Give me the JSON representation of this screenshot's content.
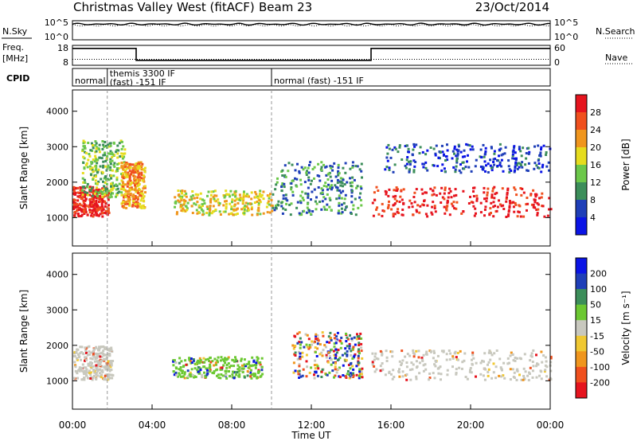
{
  "header": {
    "station": "Christmas Valley West (fitACF)",
    "beam": "Beam 23",
    "date": "23/Oct/2014"
  },
  "colors": {
    "power_scale": [
      "#0a14e6",
      "#1f3fb8",
      "#3c8e5a",
      "#6cc84a",
      "#e6dc1e",
      "#f0961e",
      "#f0501e",
      "#e6141e"
    ],
    "velocity_scale": [
      "#e6141e",
      "#f0501e",
      "#f0961e",
      "#f0c832",
      "#c8c8be",
      "#6cc832",
      "#3c8e5a",
      "#1f3fb8",
      "#0a14e6"
    ],
    "ground_scatter": "#c8c8be"
  },
  "chart_data": [
    {
      "type": "line",
      "name": "nsky-nsearch-panel",
      "left_label": "N.Sky",
      "right_label": "N.Search",
      "y_ticks_left": [
        "10^5",
        "10^0"
      ],
      "y_ticks_right": [
        "10^5",
        "10^0"
      ],
      "series": [
        {
          "name": "N.Sky",
          "style": "solid",
          "level": 0.82
        },
        {
          "name": "N.Search",
          "style": "dotted",
          "level": 0.76
        }
      ]
    },
    {
      "type": "line",
      "name": "freq-nave-panel",
      "left_label": "Freq.",
      "left_unit": "[MHz]",
      "right_label": "Nave",
      "y_ticks_left": [
        "18",
        "8"
      ],
      "y_ticks_right": [
        "60",
        "0"
      ],
      "freq_steps": [
        {
          "from": 0,
          "to": 3.2,
          "mhz": 16.5
        },
        {
          "from": 3.2,
          "to": 15.0,
          "mhz": 10.5
        },
        {
          "from": 15.0,
          "to": 24,
          "mhz": 16.5
        }
      ],
      "nave_level_frac": 0.3
    },
    {
      "type": "table",
      "name": "cpid-panel",
      "label": "CPID",
      "segments": [
        {
          "start": 0,
          "end": 1.75,
          "text": "normal"
        },
        {
          "start": 1.75,
          "end": 10.0,
          "text": "themis 3300 IF",
          "text2": "(fast) -151 IF"
        },
        {
          "start": 10.0,
          "end": 24,
          "text": "normal (fast) -151 IF"
        }
      ]
    },
    {
      "type": "heatmap",
      "name": "power-panel",
      "ylabel": "Slant Range [km]",
      "y_ticks": [
        "4000",
        "3000",
        "2000",
        "1000"
      ],
      "y_tick_values": [
        4000,
        3000,
        2000,
        1000
      ],
      "ylim": [
        200,
        4600
      ],
      "colorbar_label": "Power [dB]",
      "colorbar_ticks": [
        "28",
        "24",
        "20",
        "16",
        "12",
        "8",
        "4"
      ],
      "region_intensity": [
        {
          "t0": 0.0,
          "t1": 1.8,
          "r0": 1050,
          "r1": 1900,
          "level": 7
        },
        {
          "t0": 0.4,
          "t1": 2.6,
          "r0": 1600,
          "r1": 3200,
          "level": 3
        },
        {
          "t0": 2.4,
          "t1": 3.6,
          "r0": 1300,
          "r1": 2600,
          "level": 5
        },
        {
          "t0": 5.0,
          "t1": 10.0,
          "r0": 1100,
          "r1": 1800,
          "level": 4
        },
        {
          "t0": 10.0,
          "t1": 14.5,
          "r0": 1100,
          "r1": 2600,
          "level": 2
        },
        {
          "t0": 15.0,
          "t1": 24.0,
          "r0": 1050,
          "r1": 1900,
          "level": 7
        },
        {
          "t0": 15.5,
          "t1": 24.0,
          "r0": 2300,
          "r1": 3100,
          "level": 1
        }
      ]
    },
    {
      "type": "heatmap",
      "name": "velocity-panel",
      "ylabel": "Slant Range [km]",
      "y_ticks": [
        "4000",
        "3000",
        "2000",
        "1000"
      ],
      "y_tick_values": [
        4000,
        3000,
        2000,
        1000
      ],
      "ylim": [
        200,
        4600
      ],
      "colorbar_label": "Velocity [m s⁻¹]",
      "colorbar_ticks": [
        "200",
        "100",
        "50",
        "15",
        "-15",
        "-50",
        "-100",
        "-200"
      ],
      "x_ticks": [
        "00:00",
        "04:00",
        "08:00",
        "12:00",
        "16:00",
        "20:00",
        "00:00"
      ],
      "xlabel": "Time UT",
      "xlim_hours": [
        0,
        24
      ],
      "region_velocity": [
        {
          "t0": 0.0,
          "t1": 2.0,
          "r0": 1050,
          "r1": 2000,
          "class": "ground"
        },
        {
          "t0": 5.0,
          "t1": 9.5,
          "r0": 1100,
          "r1": 1700,
          "class": "positive"
        },
        {
          "t0": 11.0,
          "t1": 14.5,
          "r0": 1100,
          "r1": 2400,
          "class": "mixed"
        },
        {
          "t0": 15.0,
          "t1": 24.0,
          "r0": 1050,
          "r1": 1900,
          "class": "ground"
        }
      ]
    }
  ]
}
